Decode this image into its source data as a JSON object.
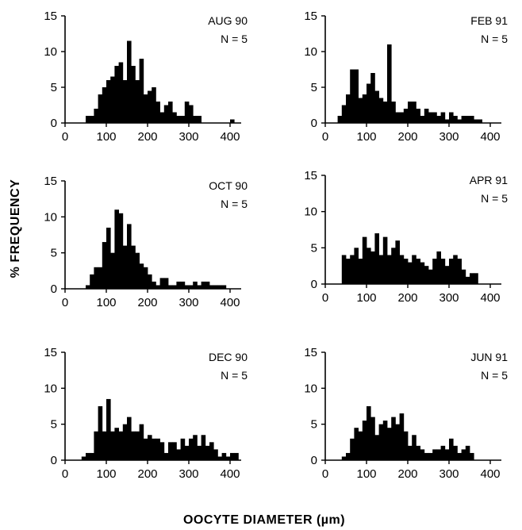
{
  "figure": {
    "ylabel": "% FREQUENCY",
    "xlabel_main": "OOCYTE DIAMETER ",
    "xlabel_unit": "(µm)"
  },
  "chart_data": [
    {
      "type": "bar",
      "label": "AUG 90",
      "n_label": "N = 5",
      "xlim": [
        0,
        400
      ],
      "ylim": [
        0,
        15
      ],
      "xticks": [
        0,
        100,
        200,
        300,
        400
      ],
      "yticks": [
        0,
        5,
        10,
        15
      ],
      "bin_width": 10,
      "x": [
        50,
        60,
        70,
        80,
        90,
        100,
        110,
        120,
        130,
        140,
        150,
        160,
        170,
        180,
        190,
        200,
        210,
        220,
        230,
        240,
        250,
        260,
        270,
        280,
        290,
        300,
        310,
        320,
        330,
        340,
        350,
        360,
        370,
        380,
        390,
        400
      ],
      "values": [
        1,
        1,
        2,
        4,
        5,
        6,
        6.5,
        8,
        8.5,
        6,
        11.5,
        8,
        6,
        9,
        4,
        4.5,
        5,
        3,
        1.5,
        2.5,
        3,
        1.5,
        1,
        1,
        3,
        2.5,
        1,
        1,
        0,
        0,
        0,
        0,
        0,
        0,
        0,
        0.5
      ]
    },
    {
      "type": "bar",
      "label": "FEB 91",
      "n_label": "N = 5",
      "xlim": [
        0,
        400
      ],
      "ylim": [
        0,
        15
      ],
      "xticks": [
        0,
        100,
        200,
        300,
        400
      ],
      "yticks": [
        0,
        5,
        10,
        15
      ],
      "bin_width": 10,
      "x": [
        30,
        40,
        50,
        60,
        70,
        80,
        90,
        100,
        110,
        120,
        130,
        140,
        150,
        160,
        170,
        180,
        190,
        200,
        210,
        220,
        230,
        240,
        250,
        260,
        270,
        280,
        290,
        300,
        310,
        320,
        330,
        340,
        350,
        360,
        370
      ],
      "values": [
        1,
        2.5,
        4,
        7.5,
        7.5,
        3.5,
        4,
        5.5,
        7,
        4.5,
        3.5,
        3,
        11,
        3,
        1.5,
        1.5,
        2,
        3,
        3,
        2,
        1,
        2,
        1.5,
        1.5,
        1,
        1.5,
        0.5,
        1.5,
        1,
        0.5,
        1,
        1,
        1,
        0.5,
        0.5
      ]
    },
    {
      "type": "bar",
      "label": "OCT 90",
      "n_label": "N = 5",
      "xlim": [
        0,
        400
      ],
      "ylim": [
        0,
        15
      ],
      "xticks": [
        0,
        100,
        200,
        300,
        400
      ],
      "yticks": [
        0,
        5,
        10,
        15
      ],
      "bin_width": 10,
      "x": [
        50,
        60,
        70,
        80,
        90,
        100,
        110,
        120,
        130,
        140,
        150,
        160,
        170,
        180,
        190,
        200,
        210,
        220,
        230,
        240,
        250,
        260,
        270,
        280,
        290,
        300,
        310,
        320,
        330,
        340,
        350,
        360,
        370,
        380
      ],
      "values": [
        0.5,
        2,
        3,
        3,
        6.5,
        8.5,
        5,
        11,
        10.5,
        6,
        9,
        6,
        5,
        3.5,
        3,
        2,
        1,
        0.5,
        1.5,
        1.5,
        0.5,
        0.5,
        1,
        1,
        0.5,
        0.5,
        1,
        0.5,
        1,
        1,
        0.5,
        0.5,
        0.5,
        0.5
      ]
    },
    {
      "type": "bar",
      "label": "APR 91",
      "n_label": "N = 5",
      "xlim": [
        0,
        400
      ],
      "ylim": [
        0,
        15
      ],
      "xticks": [
        0,
        100,
        200,
        300,
        400
      ],
      "yticks": [
        0,
        5,
        10,
        15
      ],
      "bin_width": 10,
      "x": [
        40,
        50,
        60,
        70,
        80,
        90,
        100,
        110,
        120,
        130,
        140,
        150,
        160,
        170,
        180,
        190,
        200,
        210,
        220,
        230,
        240,
        250,
        260,
        270,
        280,
        290,
        300,
        310,
        320,
        330,
        340,
        350,
        360
      ],
      "values": [
        4,
        3.5,
        4,
        5,
        3.5,
        6.5,
        5,
        4.5,
        7,
        4,
        6.5,
        4,
        5,
        6,
        4,
        3.5,
        3,
        4,
        3.5,
        3,
        2.5,
        2,
        3.5,
        4.5,
        3.5,
        2.5,
        3.5,
        4,
        3.5,
        2,
        1,
        1.5,
        1.5
      ]
    },
    {
      "type": "bar",
      "label": "DEC 90",
      "n_label": "N = 5",
      "xlim": [
        0,
        400
      ],
      "ylim": [
        0,
        15
      ],
      "xticks": [
        0,
        100,
        200,
        300,
        400
      ],
      "yticks": [
        0,
        5,
        10,
        15
      ],
      "bin_width": 10,
      "x": [
        40,
        50,
        60,
        70,
        80,
        90,
        100,
        110,
        120,
        130,
        140,
        150,
        160,
        170,
        180,
        190,
        200,
        210,
        220,
        230,
        240,
        250,
        260,
        270,
        280,
        290,
        300,
        310,
        320,
        330,
        340,
        350,
        360,
        370,
        380,
        390,
        400,
        410
      ],
      "values": [
        0.5,
        1,
        1,
        4,
        7.5,
        4,
        8.5,
        4,
        4.5,
        4,
        5,
        6,
        4,
        4,
        5,
        3,
        3.5,
        3,
        3,
        2.5,
        1,
        2.5,
        2.5,
        1.5,
        3,
        2,
        3,
        3.5,
        2,
        3.5,
        2,
        2.5,
        1.5,
        0.5,
        1,
        0.5,
        1,
        1
      ]
    },
    {
      "type": "bar",
      "label": "JUN 91",
      "n_label": "N = 5",
      "xlim": [
        0,
        400
      ],
      "ylim": [
        0,
        15
      ],
      "xticks": [
        0,
        100,
        200,
        300,
        400
      ],
      "yticks": [
        0,
        5,
        10,
        15
      ],
      "bin_width": 10,
      "x": [
        40,
        50,
        60,
        70,
        80,
        90,
        100,
        110,
        120,
        130,
        140,
        150,
        160,
        170,
        180,
        190,
        200,
        210,
        220,
        230,
        240,
        250,
        260,
        270,
        280,
        290,
        300,
        310,
        320,
        330,
        340,
        350
      ],
      "values": [
        0.5,
        1,
        3,
        4.5,
        4,
        5.5,
        7.5,
        6,
        3.5,
        5,
        5.5,
        4.5,
        6,
        5,
        6.5,
        4,
        2,
        3.5,
        2,
        1.5,
        1,
        1,
        1.5,
        1.5,
        2,
        1.5,
        3,
        2,
        1,
        1.5,
        2,
        1
      ]
    }
  ]
}
